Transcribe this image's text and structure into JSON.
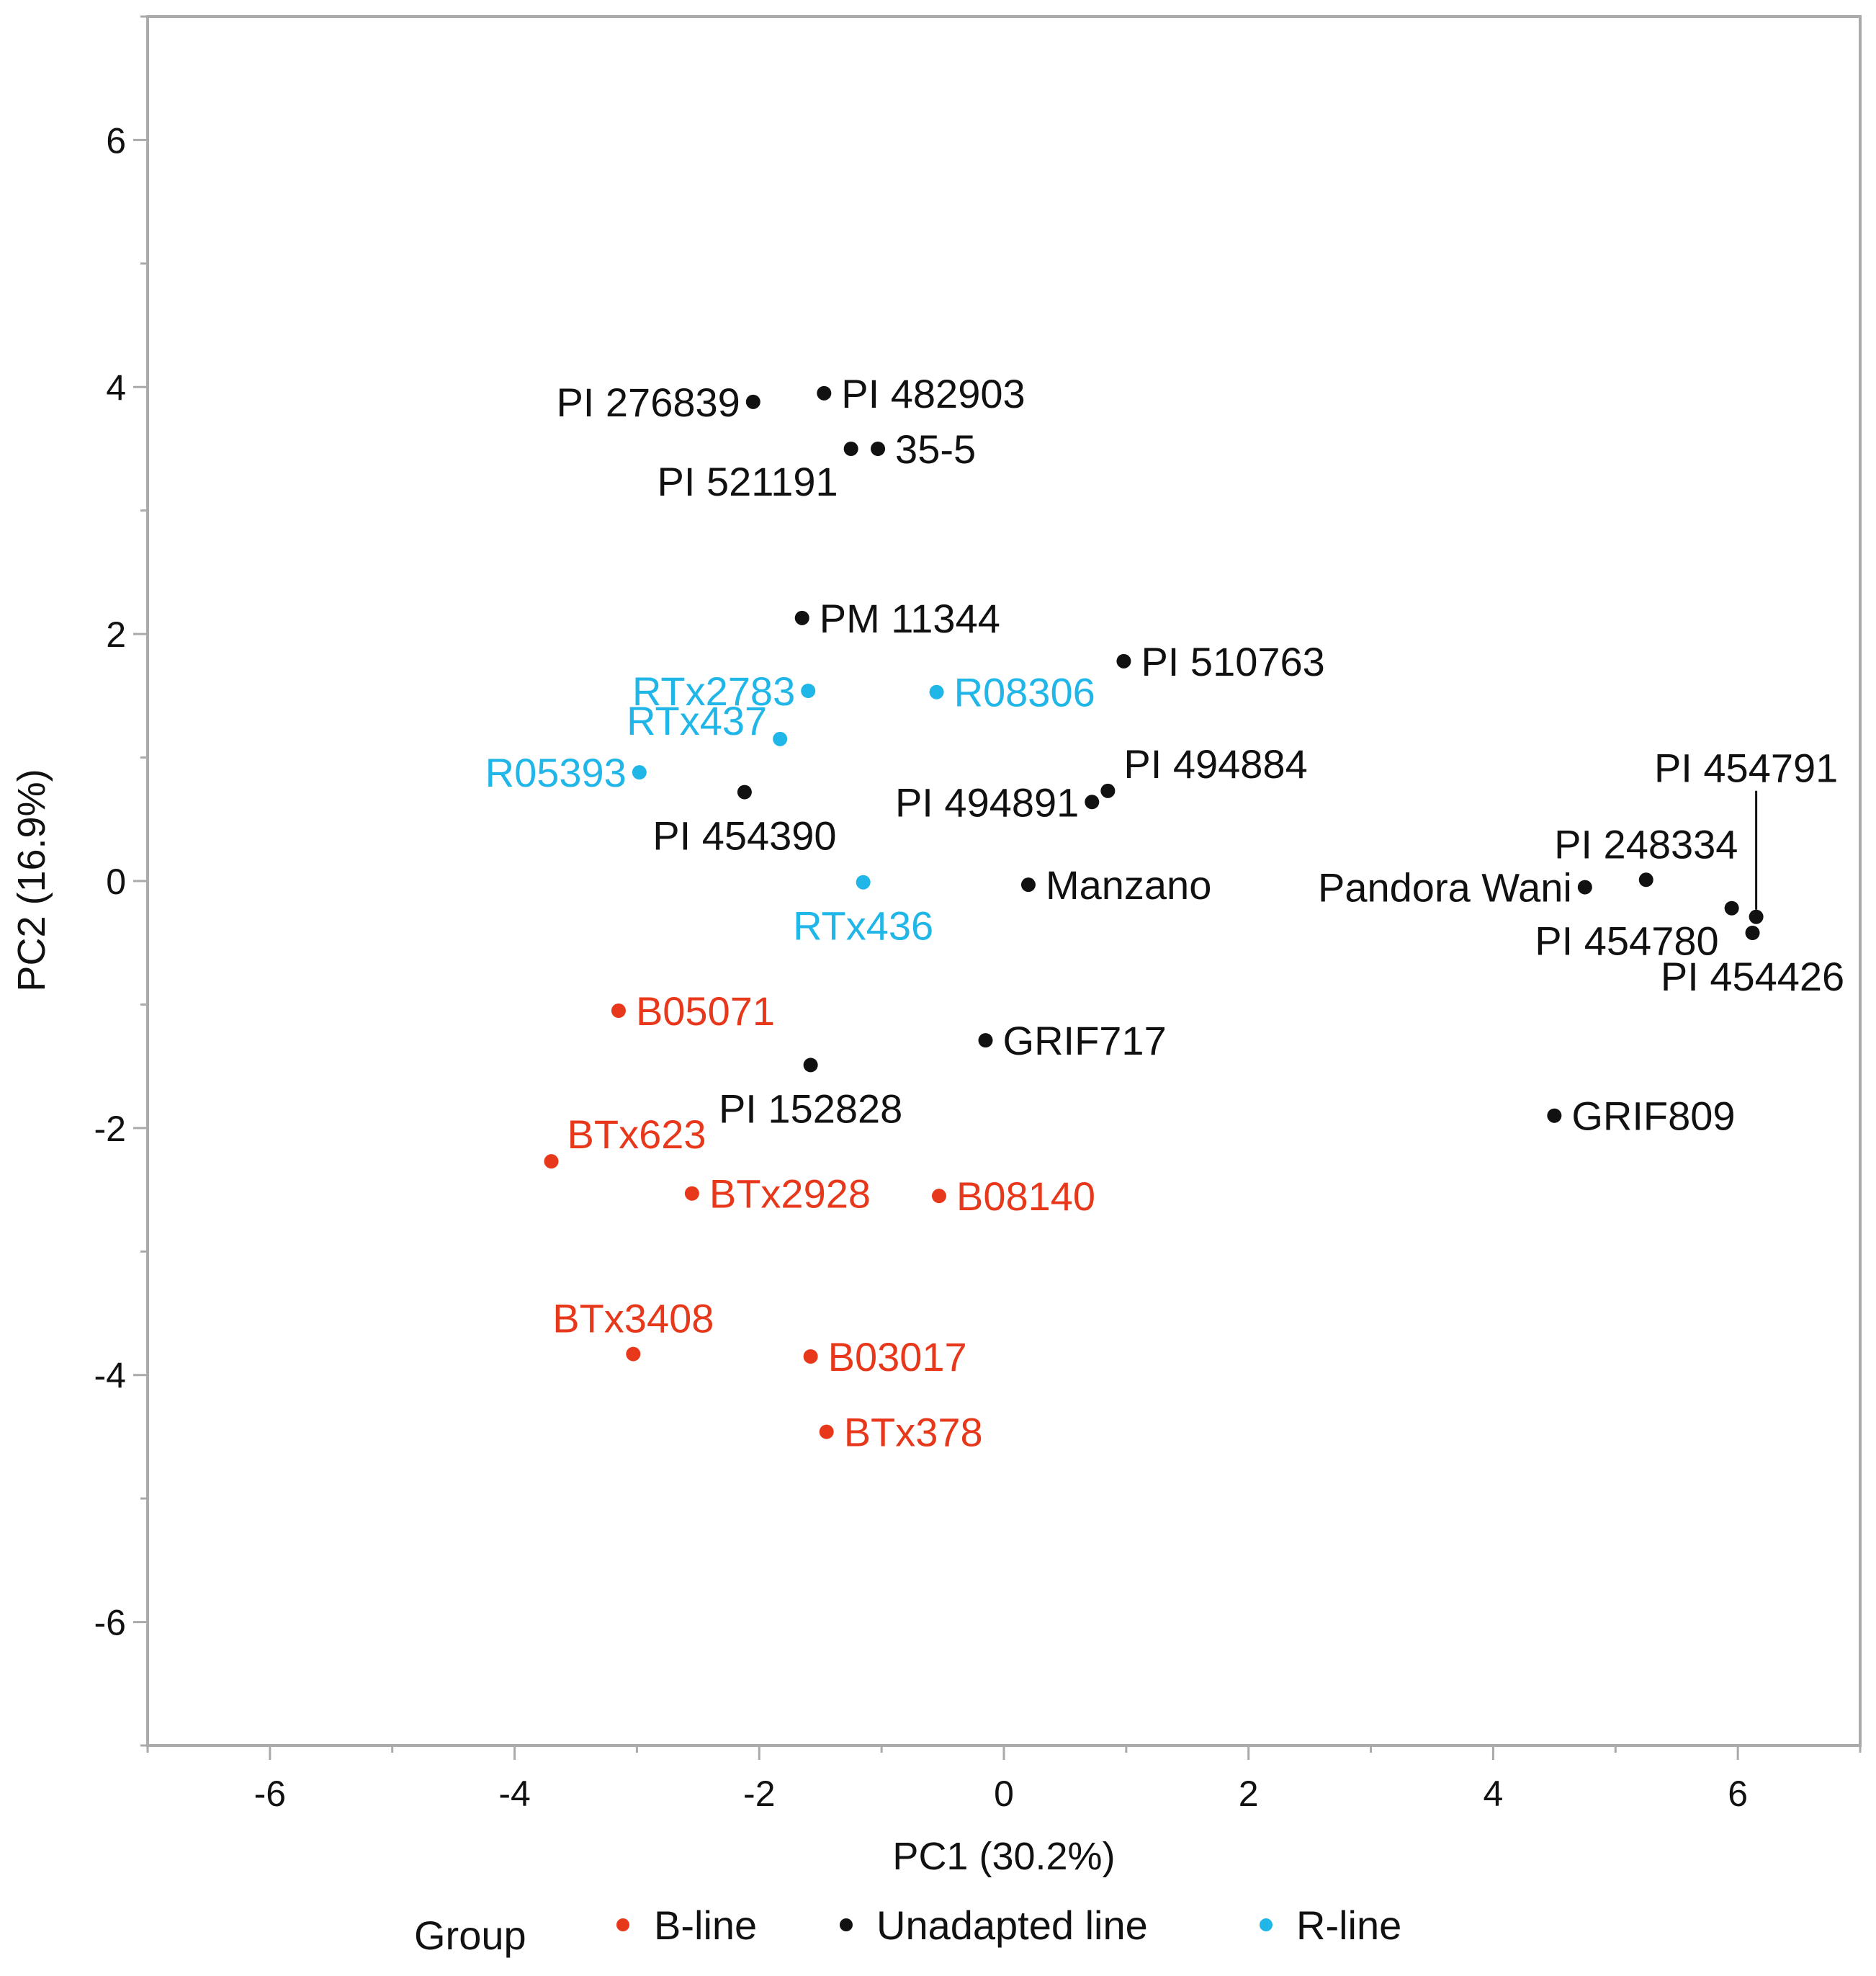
{
  "chart_data": {
    "type": "scatter",
    "title": "",
    "xlabel": "PC1 (30.2%)",
    "ylabel": "PC2 (16.9%)",
    "xlim": [
      -7,
      7
    ],
    "ylim": [
      -7,
      7
    ],
    "xticks": [
      -6,
      -4,
      -2,
      0,
      2,
      4,
      6
    ],
    "yticks": [
      -6,
      -4,
      -2,
      0,
      2,
      4,
      6
    ],
    "grid": false,
    "legend": {
      "title": "Group",
      "position": "bottom",
      "entries": [
        "B-line",
        "Unadapted line",
        "R-line"
      ]
    },
    "colors": {
      "B-line": "#e8381c",
      "Unadapted line": "#111111",
      "R-line": "#20b6e8"
    },
    "series": [
      {
        "name": "B-line",
        "points": [
          {
            "label": "B05071",
            "x": -3.15,
            "y": -1.05,
            "anchor": "right"
          },
          {
            "label": "BTx623",
            "x": -3.7,
            "y": -2.27,
            "anchor": "upper-right"
          },
          {
            "label": "BTx2928",
            "x": -2.55,
            "y": -2.53,
            "anchor": "right"
          },
          {
            "label": "B08140",
            "x": -0.53,
            "y": -2.55,
            "anchor": "right"
          },
          {
            "label": "BTx3408",
            "x": -3.03,
            "y": -3.83,
            "anchor": "above"
          },
          {
            "label": "B03017",
            "x": -1.58,
            "y": -3.85,
            "anchor": "right"
          },
          {
            "label": "BTx378",
            "x": -1.45,
            "y": -4.46,
            "anchor": "right"
          }
        ]
      },
      {
        "name": "Unadapted line",
        "points": [
          {
            "label": "PI 276839",
            "x": -2.05,
            "y": 3.88,
            "anchor": "left"
          },
          {
            "label": "PI 482903",
            "x": -1.47,
            "y": 3.95,
            "anchor": "right"
          },
          {
            "label": "PI 521191",
            "x": -1.25,
            "y": 3.5,
            "anchor": "below-left"
          },
          {
            "label": "35-5",
            "x": -1.03,
            "y": 3.5,
            "anchor": "right"
          },
          {
            "label": "PM 11344",
            "x": -1.65,
            "y": 2.13,
            "anchor": "right"
          },
          {
            "label": "PI 510763",
            "x": 0.98,
            "y": 1.78,
            "anchor": "right"
          },
          {
            "label": "PI 494884",
            "x": 0.85,
            "y": 0.73,
            "anchor": "upper-right"
          },
          {
            "label": "PI 494891",
            "x": 0.72,
            "y": 0.64,
            "anchor": "left"
          },
          {
            "label": "PI 454390",
            "x": -2.12,
            "y": 0.72,
            "anchor": "below"
          },
          {
            "label": "Manzano",
            "x": 0.2,
            "y": -0.03,
            "anchor": "right"
          },
          {
            "label": "GRIF717",
            "x": -0.15,
            "y": -1.29,
            "anchor": "right"
          },
          {
            "label": "PI 152828",
            "x": -1.58,
            "y": -1.49,
            "anchor": "below"
          },
          {
            "label": "GRIF809",
            "x": 4.5,
            "y": -1.9,
            "anchor": "right"
          },
          {
            "label": "Pandora Wani",
            "x": 4.75,
            "y": -0.05,
            "anchor": "left"
          },
          {
            "label": "PI 248334",
            "x": 5.25,
            "y": 0.01,
            "anchor": "above"
          },
          {
            "label": "PI 454780",
            "x": 5.95,
            "y": -0.22,
            "anchor": "below-left"
          },
          {
            "label": "PI 454791",
            "x": 6.15,
            "y": -0.29,
            "anchor": "leader-above"
          },
          {
            "label": "PI 454426",
            "x": 6.12,
            "y": -0.42,
            "anchor": "below"
          }
        ]
      },
      {
        "name": "R-line",
        "points": [
          {
            "label": "RTx2783",
            "x": -1.6,
            "y": 1.54,
            "anchor": "left"
          },
          {
            "label": "R08306",
            "x": -0.55,
            "y": 1.53,
            "anchor": "right"
          },
          {
            "label": "RTx437",
            "x": -1.83,
            "y": 1.15,
            "anchor": "upper-left"
          },
          {
            "label": "R05393",
            "x": -2.98,
            "y": 0.88,
            "anchor": "left"
          },
          {
            "label": "RTx436",
            "x": -1.15,
            "y": -0.01,
            "anchor": "below"
          }
        ]
      }
    ]
  }
}
